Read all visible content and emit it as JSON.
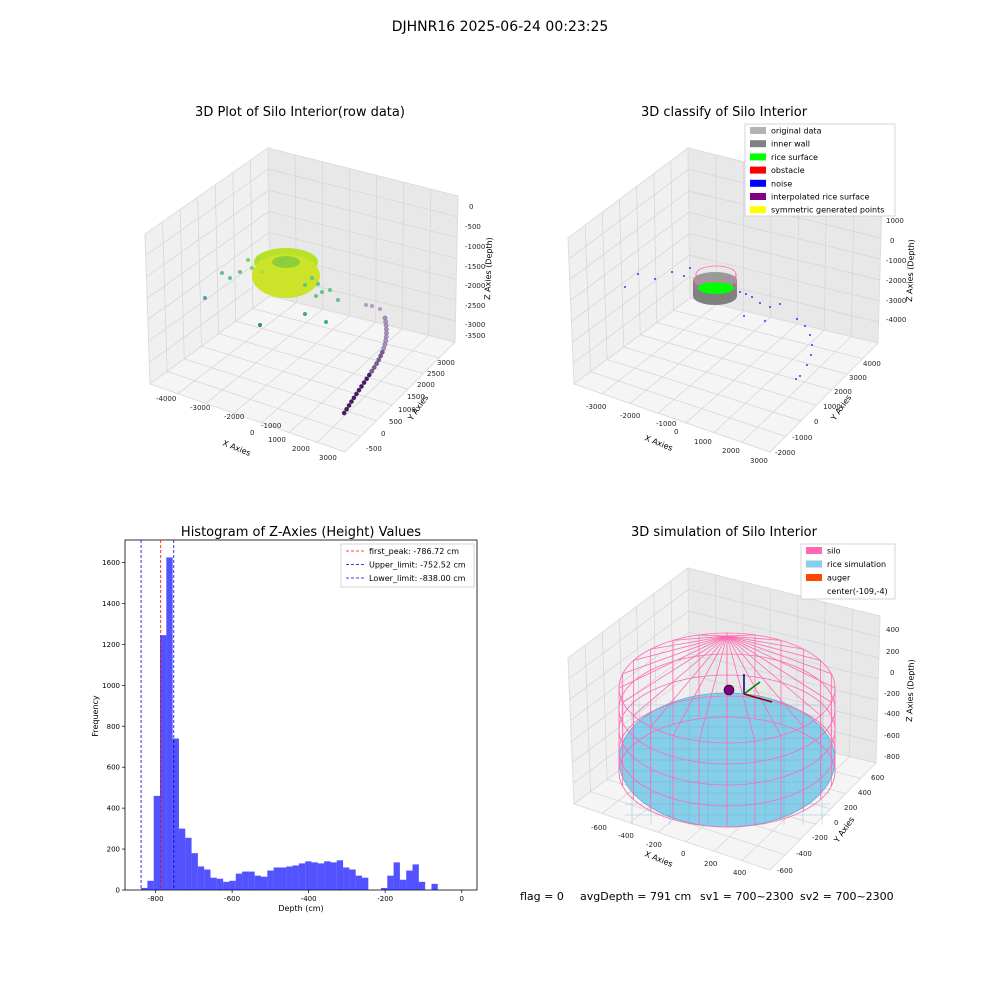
{
  "suptitle": "DJHNR16 2025-06-24 00:23:25",
  "footer": {
    "flag": "flag = 0",
    "avg": "avgDepth = 791 cm",
    "sv1": "sv1 = 700~2300",
    "sv2": "sv2 = 700~2300"
  },
  "colors": {
    "hist_bar": "#0000ff",
    "first_peak": "#ff0000",
    "limits": "#0000cc",
    "silo": "#ff69b4",
    "rice": "#87ceeb",
    "auger": "#ff4500",
    "pane": "#f2f2f2",
    "grid": "#d0d0d0"
  },
  "panel1": {
    "title": "3D Plot of Silo Interior(row data)",
    "x_label": "X Axies",
    "y_label": "Y Axies",
    "z_label": "Z Axies (Depth)",
    "x_ticks": [
      "-4000",
      "-3000",
      "-2000",
      "-1000",
      "0",
      "1000",
      "2000",
      "3000"
    ],
    "y_ticks": [
      "-500",
      "0",
      "500",
      "1000",
      "1500",
      "2000",
      "2500",
      "3000"
    ],
    "z_ticks": [
      "0",
      "-500",
      "-1000",
      "-1500",
      "-2000",
      "-2500",
      "-3000",
      "-3500"
    ]
  },
  "panel2": {
    "title": "3D classify of Silo Interior",
    "x_label": "X Axies",
    "y_label": "Y Axies",
    "z_label": "Z Axies (Depth)",
    "x_ticks": [
      "-3000",
      "-2000",
      "-1000",
      "0",
      "1000",
      "2000",
      "3000"
    ],
    "y_ticks": [
      "-2000",
      "-1000",
      "0",
      "1000",
      "2000",
      "3000",
      "4000"
    ],
    "z_ticks": [
      "1000",
      "0",
      "-1000",
      "-2000",
      "-3000",
      "-4000"
    ],
    "legend": [
      {
        "label": "original data",
        "color": "#b3b3b3"
      },
      {
        "label": "inner wall",
        "color": "#808080"
      },
      {
        "label": "rice surface",
        "color": "#00ff00"
      },
      {
        "label": "obstacle",
        "color": "#ff0000"
      },
      {
        "label": "noise",
        "color": "#0000ff"
      },
      {
        "label": "interpolated rice surface",
        "color": "#800080"
      },
      {
        "label": "symmetric generated points",
        "color": "#ffff00"
      }
    ]
  },
  "panel4": {
    "title": "3D simulation of Silo Interior",
    "x_label": "X Axies",
    "y_label": "Y Axies",
    "z_label": "Z Axies (Depth)",
    "x_ticks": [
      "-600",
      "-400",
      "-200",
      "0",
      "200",
      "400"
    ],
    "y_ticks": [
      "-600",
      "-400",
      "-200",
      "0",
      "200",
      "400",
      "600"
    ],
    "z_ticks": [
      "400",
      "200",
      "0",
      "-200",
      "-400",
      "-600",
      "-800"
    ],
    "legend": [
      {
        "label": "silo",
        "color": "#ff69b4"
      },
      {
        "label": "rice simulation",
        "color": "#87ceeb"
      },
      {
        "label": "auger",
        "color": "#ff4500"
      },
      {
        "label": "center(-109,-4)",
        "color": ""
      }
    ]
  },
  "chart_data": [
    {
      "type": "histogram",
      "title": "Histogram of Z-Axies (Height) Values",
      "xlabel": "Depth (cm)",
      "ylabel": "Frequency",
      "xlim": [
        -880,
        40
      ],
      "ylim": [
        0,
        1710
      ],
      "x_ticks": [
        -800,
        -600,
        -400,
        -200,
        0
      ],
      "y_ticks": [
        0,
        200,
        400,
        600,
        800,
        1000,
        1200,
        1400,
        1600
      ],
      "bin_width": 16.5,
      "bin_start": -838,
      "frequencies": [
        10,
        45,
        460,
        1245,
        1625,
        740,
        300,
        255,
        180,
        115,
        100,
        60,
        55,
        40,
        45,
        80,
        90,
        90,
        70,
        65,
        95,
        110,
        110,
        115,
        120,
        130,
        140,
        135,
        130,
        140,
        135,
        145,
        110,
        100,
        70,
        60,
        0,
        0,
        10,
        70,
        135,
        50,
        95,
        125,
        40,
        0,
        30
      ],
      "lines": [
        {
          "name": "first_peak: -786.72 cm",
          "x": -786.72,
          "color": "#ff0000"
        },
        {
          "name": "Upper_limit: -752.52 cm",
          "x": -752.52,
          "color": "#0000cc"
        },
        {
          "name": "Lower_limit: -838.00 cm",
          "x": -838.0,
          "color": "#0000cc"
        }
      ],
      "legend_position": "upper right",
      "grid": false
    }
  ]
}
